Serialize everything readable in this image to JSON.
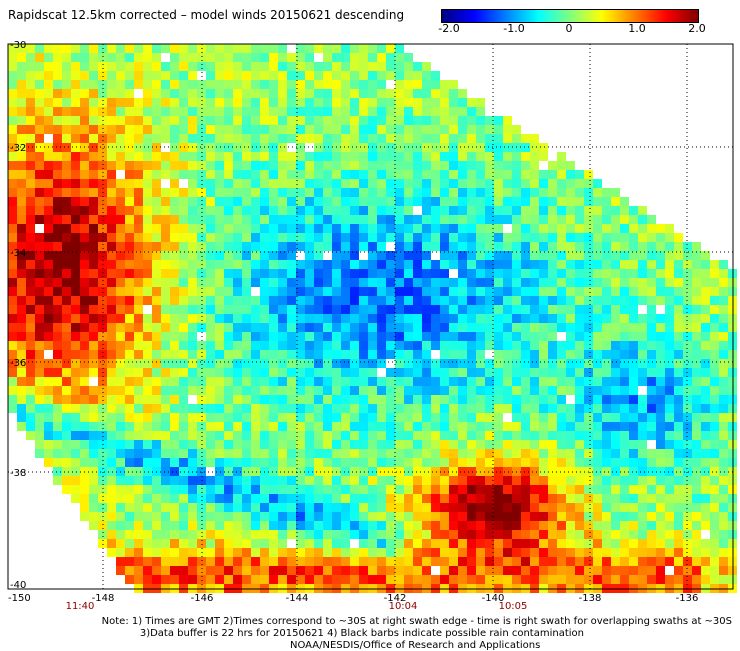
{
  "title": "Rapidscat 12.5km corrected – model winds 20150621 descending",
  "colorbar": {
    "labels": [
      "-2.0",
      "-1.0",
      "0",
      "1.0",
      "2.0"
    ],
    "min": -2.0,
    "max": 2.0,
    "colors": [
      "#000080",
      "#0000ff",
      "#0080ff",
      "#00ffff",
      "#80ff80",
      "#ffff00",
      "#ff8000",
      "#ff0000",
      "#800000"
    ]
  },
  "map": {
    "lat_labels": [
      "-30",
      "-32",
      "-34",
      "-36",
      "-38",
      "-40"
    ],
    "lon_labels": [
      "-150",
      "-148",
      "-146",
      "-144",
      "-142",
      "-140",
      "-138",
      "-136"
    ],
    "time_labels": [
      "11:40",
      "10:04",
      "10:05"
    ],
    "time_color": "#8b0000",
    "grid_color": "#000000"
  },
  "notes": {
    "line1": "Note: 1) Times are GMT 2)Times correspond to ~30S at right swath edge - time is right swath for overlapping swaths at ~30S",
    "line2": "3)Data buffer is 22 hrs for 20150621 4) Black barbs indicate possible rain contamination",
    "line3": "NOAA/NESDIS/Office of Research and Applications"
  }
}
